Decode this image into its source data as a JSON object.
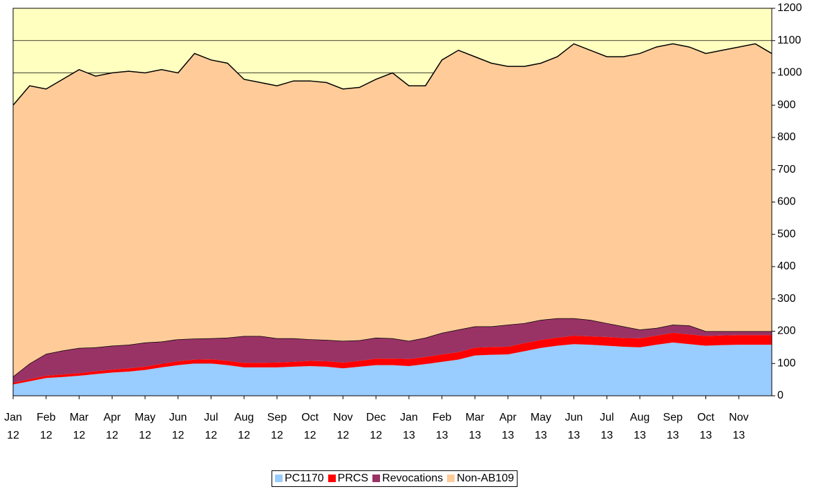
{
  "chart_data": {
    "type": "stacked_area",
    "categories": [
      "Jan 12",
      null,
      "Feb 12",
      null,
      "Mar 12",
      null,
      "Apr 12",
      null,
      "May 12",
      null,
      "Jun 12",
      null,
      "Jul 12",
      null,
      "Aug 12",
      null,
      "Sep 12",
      null,
      "Oct 12",
      null,
      "Nov 12",
      null,
      "Dec 12",
      null,
      "Jan 13",
      null,
      "Feb 13",
      null,
      "Mar 13",
      null,
      "Apr 13",
      null,
      "May 13",
      null,
      "Jun 13",
      null,
      "Jul 13",
      null,
      "Aug 13",
      null,
      "Sep 13",
      null,
      "Oct 13",
      null,
      "Nov 13",
      null,
      null
    ],
    "series": [
      {
        "name": "PC1170",
        "color": "#99ccff",
        "values": [
          35,
          45,
          55,
          58,
          62,
          67,
          72,
          75,
          80,
          88,
          95,
          100,
          100,
          95,
          88,
          88,
          88,
          90,
          92,
          90,
          85,
          90,
          95,
          95,
          92,
          98,
          105,
          112,
          125,
          127,
          128,
          138,
          148,
          155,
          160,
          158,
          155,
          152,
          150,
          158,
          165,
          160,
          155,
          157,
          158,
          158,
          158
        ]
      },
      {
        "name": "PRCS",
        "color": "#ff0000",
        "values": [
          5,
          6,
          7,
          8,
          8,
          9,
          9,
          10,
          10,
          11,
          12,
          12,
          13,
          13,
          14,
          14,
          15,
          15,
          16,
          17,
          18,
          18,
          20,
          20,
          22,
          22,
          23,
          23,
          24,
          24,
          24,
          25,
          25,
          25,
          26,
          26,
          27,
          27,
          28,
          28,
          30,
          30,
          30,
          30,
          30,
          30,
          30
        ]
      },
      {
        "name": "Revocations",
        "color": "#993366",
        "values": [
          20,
          49,
          68,
          74,
          78,
          74,
          74,
          73,
          75,
          69,
          68,
          65,
          65,
          72,
          83,
          83,
          75,
          73,
          67,
          66,
          67,
          64,
          65,
          63,
          56,
          60,
          67,
          70,
          66,
          64,
          68,
          62,
          62,
          60,
          54,
          51,
          43,
          36,
          27,
          24,
          25,
          28,
          15,
          13,
          12,
          12,
          12
        ]
      },
      {
        "name": "Non-AB109",
        "color": "#ffcc99",
        "values": [
          840,
          860,
          820,
          840,
          862,
          840,
          845,
          847,
          835,
          842,
          825,
          883,
          862,
          850,
          795,
          785,
          782,
          797,
          800,
          797,
          780,
          783,
          800,
          822,
          790,
          780,
          845,
          865,
          835,
          815,
          800,
          795,
          795,
          810,
          850,
          835,
          825,
          835,
          855,
          870,
          870,
          862,
          860,
          870,
          880,
          890,
          860
        ]
      }
    ],
    "ylim": [
      0,
      1200
    ],
    "yticks": [
      0,
      100,
      200,
      300,
      400,
      500,
      600,
      700,
      800,
      900,
      1000,
      1100,
      1200
    ],
    "grid": true,
    "plot_background": "#ffffc0",
    "legend": "bottom"
  }
}
